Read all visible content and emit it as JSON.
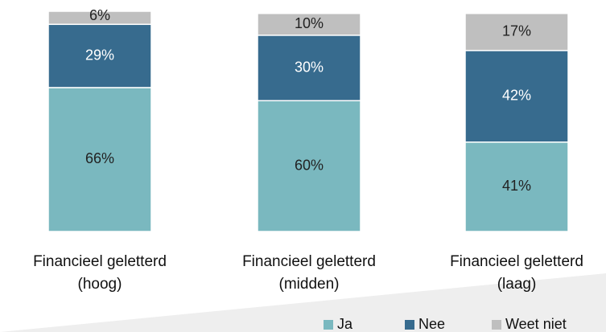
{
  "chart_data": {
    "type": "stacked_bar",
    "categories": [
      "Financieel geletterd\n(hoog)",
      "Financieel geletterd\n(midden)",
      "Financieel geletterd\n(laag)"
    ],
    "series": [
      {
        "name": "Ja",
        "color": "#7ab8bf",
        "values": [
          66,
          60,
          41
        ],
        "value_labels": [
          "66%",
          "60%",
          "41%"
        ]
      },
      {
        "name": "Nee",
        "color": "#376b8e",
        "values": [
          29,
          30,
          42
        ],
        "value_labels": [
          "29%",
          "30%",
          "42%"
        ]
      },
      {
        "name": "Weet niet",
        "color": "#bfbfbf",
        "values": [
          6,
          10,
          17
        ],
        "value_labels": [
          "6%",
          "10%",
          "17%"
        ]
      }
    ],
    "legend": "bottom"
  }
}
